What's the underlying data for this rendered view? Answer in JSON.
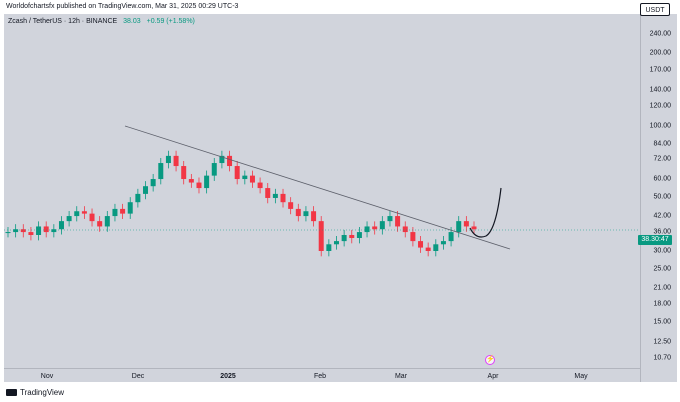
{
  "header": {
    "text": "Worldofchartsfx published on TradingView.com, Mar 31, 2025 00:29 UTC-3"
  },
  "symbol": {
    "text": "Zcash / TetherUS · 12h · BINANCE",
    "price": "38.03",
    "change": "+0.59 (+1.58%)"
  },
  "currency_button": "USDT",
  "price_tag": {
    "price": "38.30:47",
    "color": "#089981"
  },
  "y_axis": {
    "scale": "log",
    "labels": [
      "240.00",
      "200.00",
      "170.00",
      "140.00",
      "120.00",
      "100.00",
      "84.00",
      "72.00",
      "60.00",
      "50.00",
      "42.00",
      "36.00",
      "30.00",
      "25.00",
      "21.00",
      "18.00",
      "15.00",
      "12.50",
      "10.70"
    ]
  },
  "x_axis": {
    "labels": [
      {
        "text": "Nov",
        "bold": false
      },
      {
        "text": "Dec",
        "bold": false
      },
      {
        "text": "2025",
        "bold": true
      },
      {
        "text": "Feb",
        "bold": false
      },
      {
        "text": "Mar",
        "bold": false
      },
      {
        "text": "Apr",
        "bold": false
      },
      {
        "text": "May",
        "bold": false
      }
    ]
  },
  "footer": {
    "brand": "TradingView"
  },
  "colors": {
    "up": "#089981",
    "down": "#f23645",
    "background": "#d1d4dc",
    "trendline": "#131722"
  },
  "chart_data": {
    "type": "candlestick",
    "series_approx_close": [
      36,
      37,
      36,
      35,
      38,
      36,
      37,
      40,
      42,
      44,
      43,
      40,
      38,
      42,
      45,
      43,
      48,
      52,
      56,
      60,
      70,
      75,
      68,
      60,
      58,
      55,
      62,
      70,
      75,
      68,
      60,
      62,
      58,
      55,
      50,
      52,
      48,
      45,
      42,
      44,
      40,
      30,
      32,
      33,
      35,
      34,
      36,
      38,
      37,
      40,
      42,
      38,
      36,
      33,
      31,
      30,
      32,
      33,
      36,
      40,
      38,
      37
    ],
    "trendline": {
      "from": [
        "Nov (late Oct)",
        100
      ],
      "to": [
        "Apr",
        31
      ]
    },
    "projection": "curved arrow pointing up from ~38 toward ~55"
  }
}
